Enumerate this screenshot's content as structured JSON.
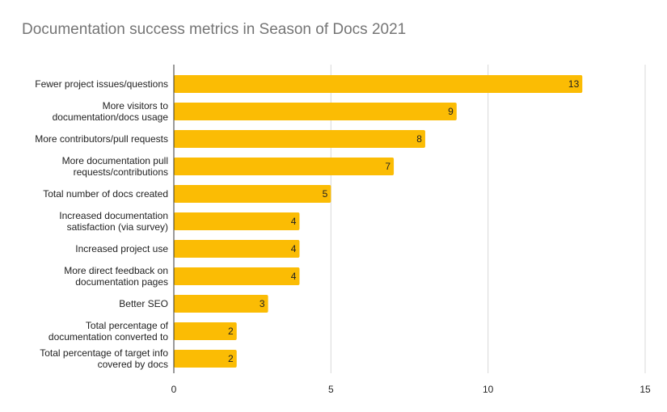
{
  "chart_data": {
    "type": "bar",
    "orientation": "horizontal",
    "title": "Documentation success metrics in Season of Docs 2021",
    "categories": [
      [
        "Fewer project issues/questions"
      ],
      [
        "More visitors to",
        "documentation/docs usage"
      ],
      [
        "More contributors/pull requests"
      ],
      [
        "More documentation pull",
        "requests/contributions"
      ],
      [
        "Total number of docs created"
      ],
      [
        "Increased documentation",
        "satisfaction (via survey)"
      ],
      [
        "Increased project use"
      ],
      [
        "More direct feedback on",
        "documentation pages"
      ],
      [
        "Better SEO"
      ],
      [
        "Total percentage of",
        "documentation converted to"
      ],
      [
        "Total percentage of target info",
        "covered by docs"
      ]
    ],
    "values": [
      13,
      9,
      8,
      7,
      5,
      4,
      4,
      4,
      3,
      2,
      2
    ],
    "xlim": [
      0,
      15
    ],
    "xticks": [
      0,
      5,
      10,
      15
    ],
    "grid": true,
    "bar_color": "#fbbc04",
    "xlabel": "",
    "ylabel": ""
  }
}
